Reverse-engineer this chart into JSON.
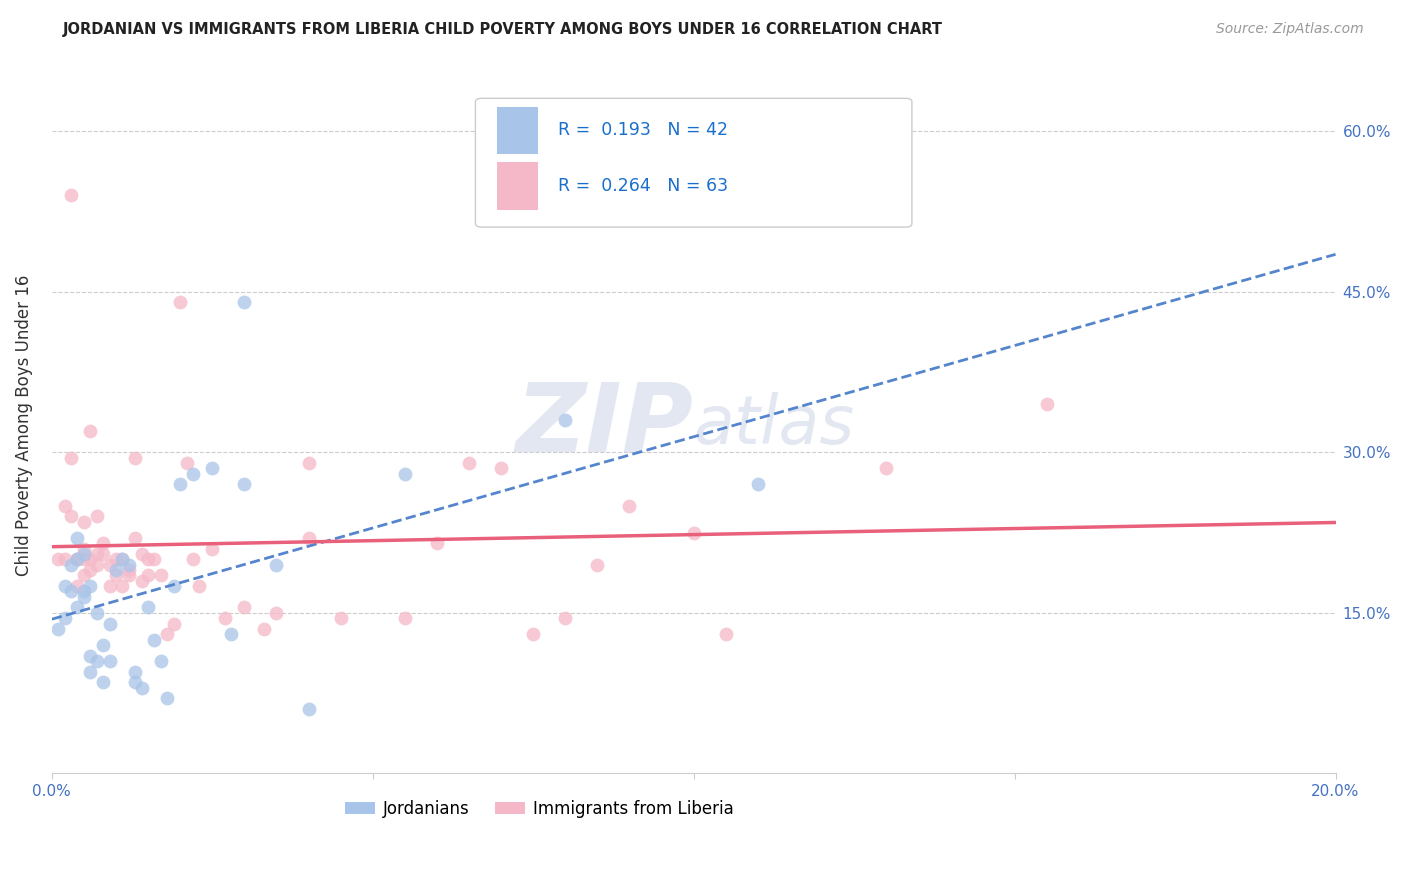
{
  "title": "JORDANIAN VS IMMIGRANTS FROM LIBERIA CHILD POVERTY AMONG BOYS UNDER 16 CORRELATION CHART",
  "source": "Source: ZipAtlas.com",
  "ylabel": "Child Poverty Among Boys Under 16",
  "xlim": [
    0,
    0.2
  ],
  "ylim": [
    0,
    0.65
  ],
  "yticks": [
    0.15,
    0.3,
    0.45,
    0.6
  ],
  "ytick_labels": [
    "15.0%",
    "30.0%",
    "45.0%",
    "60.0%"
  ],
  "xticks": [
    0.0,
    0.05,
    0.1,
    0.15,
    0.2
  ],
  "xtick_labels": [
    "0.0%",
    "",
    "",
    "",
    "20.0%"
  ],
  "group1_label": "Jordanians",
  "group2_label": "Immigrants from Liberia",
  "group1_R": 0.193,
  "group1_N": 42,
  "group2_R": 0.264,
  "group2_N": 63,
  "group1_color": "#a8c4e8",
  "group2_color": "#f5b8c8",
  "group1_line_color": "#5585cc",
  "group2_line_color": "#e8607a",
  "background_color": "#ffffff",
  "watermark_zip": "ZIP",
  "watermark_atlas": "atlas",
  "jordanians_x": [
    0.001,
    0.002,
    0.002,
    0.003,
    0.003,
    0.004,
    0.004,
    0.004,
    0.005,
    0.005,
    0.005,
    0.006,
    0.006,
    0.006,
    0.007,
    0.007,
    0.008,
    0.008,
    0.009,
    0.009,
    0.01,
    0.011,
    0.012,
    0.013,
    0.013,
    0.014,
    0.015,
    0.016,
    0.017,
    0.018,
    0.019,
    0.02,
    0.022,
    0.025,
    0.028,
    0.03,
    0.03,
    0.035,
    0.04,
    0.055,
    0.08,
    0.11
  ],
  "jordanians_y": [
    0.135,
    0.175,
    0.145,
    0.195,
    0.17,
    0.2,
    0.155,
    0.22,
    0.17,
    0.205,
    0.165,
    0.095,
    0.11,
    0.175,
    0.105,
    0.15,
    0.085,
    0.12,
    0.105,
    0.14,
    0.19,
    0.2,
    0.195,
    0.095,
    0.085,
    0.08,
    0.155,
    0.125,
    0.105,
    0.07,
    0.175,
    0.27,
    0.28,
    0.285,
    0.13,
    0.27,
    0.44,
    0.195,
    0.06,
    0.28,
    0.33,
    0.27
  ],
  "liberia_x": [
    0.001,
    0.002,
    0.002,
    0.003,
    0.003,
    0.003,
    0.004,
    0.004,
    0.004,
    0.005,
    0.005,
    0.005,
    0.005,
    0.006,
    0.006,
    0.006,
    0.007,
    0.007,
    0.007,
    0.008,
    0.008,
    0.009,
    0.009,
    0.01,
    0.01,
    0.011,
    0.011,
    0.012,
    0.012,
    0.013,
    0.013,
    0.014,
    0.014,
    0.015,
    0.015,
    0.016,
    0.017,
    0.018,
    0.019,
    0.02,
    0.021,
    0.022,
    0.023,
    0.025,
    0.027,
    0.03,
    0.033,
    0.035,
    0.04,
    0.04,
    0.045,
    0.055,
    0.06,
    0.065,
    0.07,
    0.075,
    0.08,
    0.085,
    0.09,
    0.1,
    0.105,
    0.13,
    0.155
  ],
  "liberia_y": [
    0.2,
    0.25,
    0.2,
    0.24,
    0.295,
    0.54,
    0.2,
    0.175,
    0.2,
    0.2,
    0.21,
    0.185,
    0.235,
    0.32,
    0.19,
    0.2,
    0.24,
    0.205,
    0.195,
    0.215,
    0.205,
    0.175,
    0.195,
    0.185,
    0.2,
    0.175,
    0.2,
    0.19,
    0.185,
    0.295,
    0.22,
    0.18,
    0.205,
    0.185,
    0.2,
    0.2,
    0.185,
    0.13,
    0.14,
    0.44,
    0.29,
    0.2,
    0.175,
    0.21,
    0.145,
    0.155,
    0.135,
    0.15,
    0.29,
    0.22,
    0.145,
    0.145,
    0.215,
    0.29,
    0.285,
    0.13,
    0.145,
    0.195,
    0.25,
    0.225,
    0.13,
    0.285,
    0.345
  ]
}
